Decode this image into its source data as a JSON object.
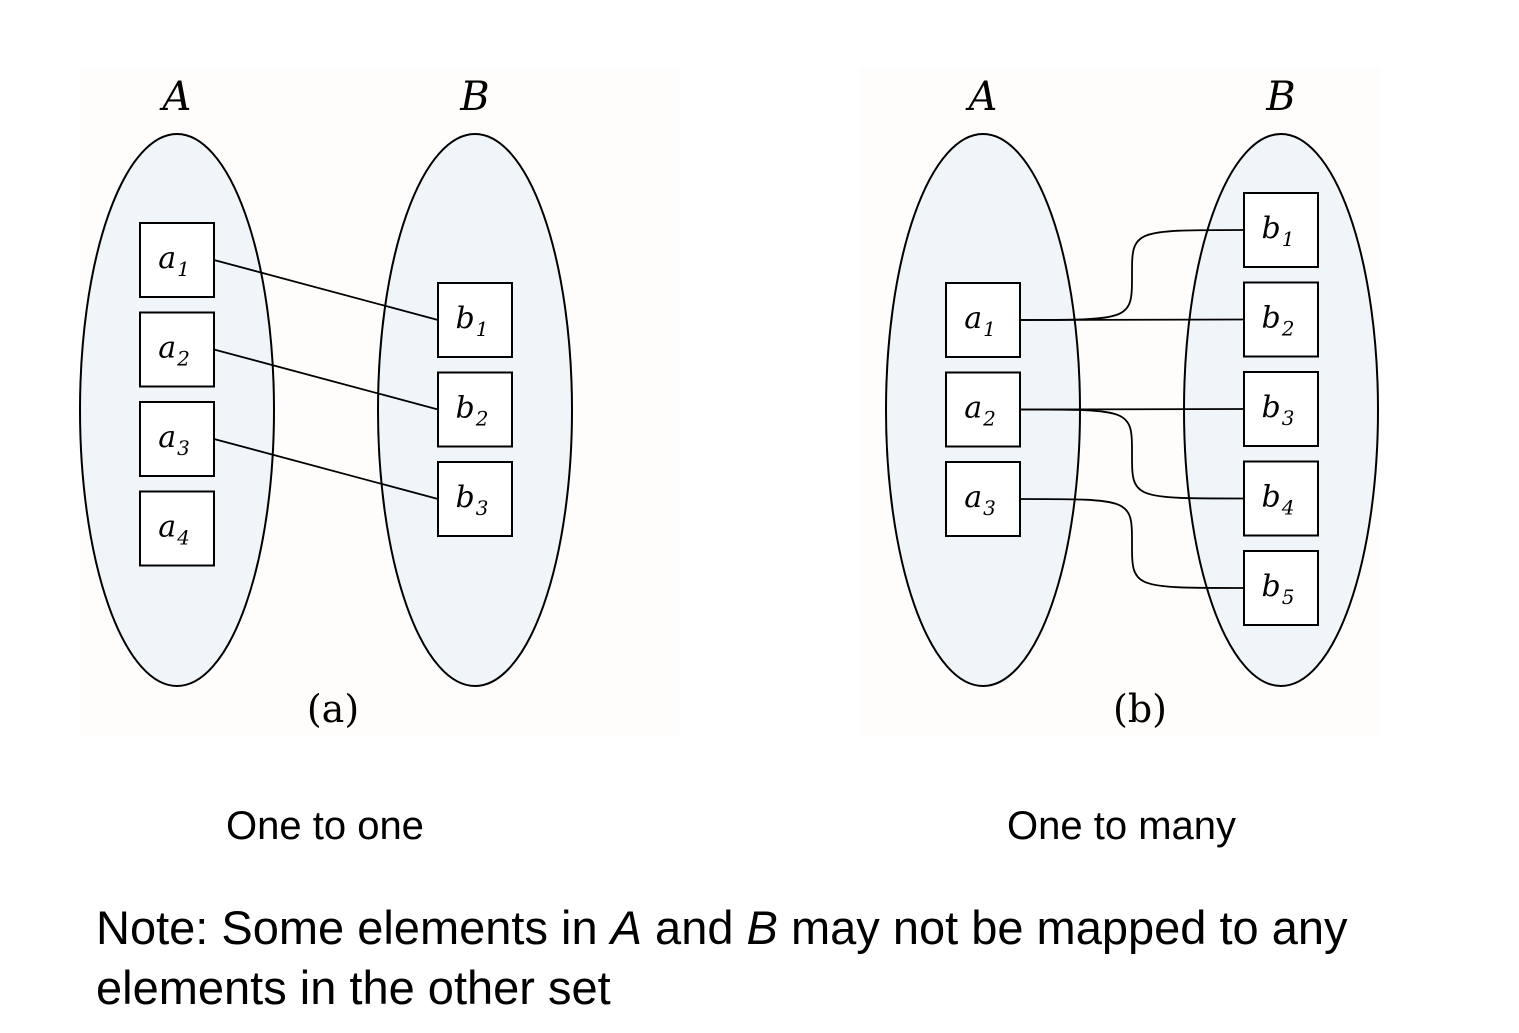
{
  "panels": [
    {
      "id": "a",
      "sublabel": "(a)",
      "caption": "One to one",
      "set_a": {
        "label": "A",
        "elements": [
          {
            "base": "a",
            "sub": "1"
          },
          {
            "base": "a",
            "sub": "2"
          },
          {
            "base": "a",
            "sub": "3"
          },
          {
            "base": "a",
            "sub": "4"
          }
        ]
      },
      "set_b": {
        "label": "B",
        "elements": [
          {
            "base": "b",
            "sub": "1"
          },
          {
            "base": "b",
            "sub": "2"
          },
          {
            "base": "b",
            "sub": "3"
          }
        ]
      },
      "mappings": [
        {
          "from": "a1",
          "to": "b1"
        },
        {
          "from": "a2",
          "to": "b2"
        },
        {
          "from": "a3",
          "to": "b3"
        }
      ]
    },
    {
      "id": "b",
      "sublabel": "(b)",
      "caption": "One to many",
      "set_a": {
        "label": "A",
        "elements": [
          {
            "base": "a",
            "sub": "1"
          },
          {
            "base": "a",
            "sub": "2"
          },
          {
            "base": "a",
            "sub": "3"
          }
        ]
      },
      "set_b": {
        "label": "B",
        "elements": [
          {
            "base": "b",
            "sub": "1"
          },
          {
            "base": "b",
            "sub": "2"
          },
          {
            "base": "b",
            "sub": "3"
          },
          {
            "base": "b",
            "sub": "4"
          },
          {
            "base": "b",
            "sub": "5"
          }
        ]
      },
      "mappings": [
        {
          "from": "a1",
          "to": "b1"
        },
        {
          "from": "a1",
          "to": "b2"
        },
        {
          "from": "a2",
          "to": "b3"
        },
        {
          "from": "a2",
          "to": "b4"
        },
        {
          "from": "a3",
          "to": "b5"
        }
      ]
    }
  ],
  "note": {
    "prefix": "Note: Some elements in ",
    "set_a": "A",
    "middle": " and ",
    "set_b": "B",
    "suffix": " may not be mapped to any elements in the other set"
  },
  "colors": {
    "set_fill": "#f0f5fa",
    "panel_background": "#fefdfb",
    "stroke": "#000000"
  }
}
